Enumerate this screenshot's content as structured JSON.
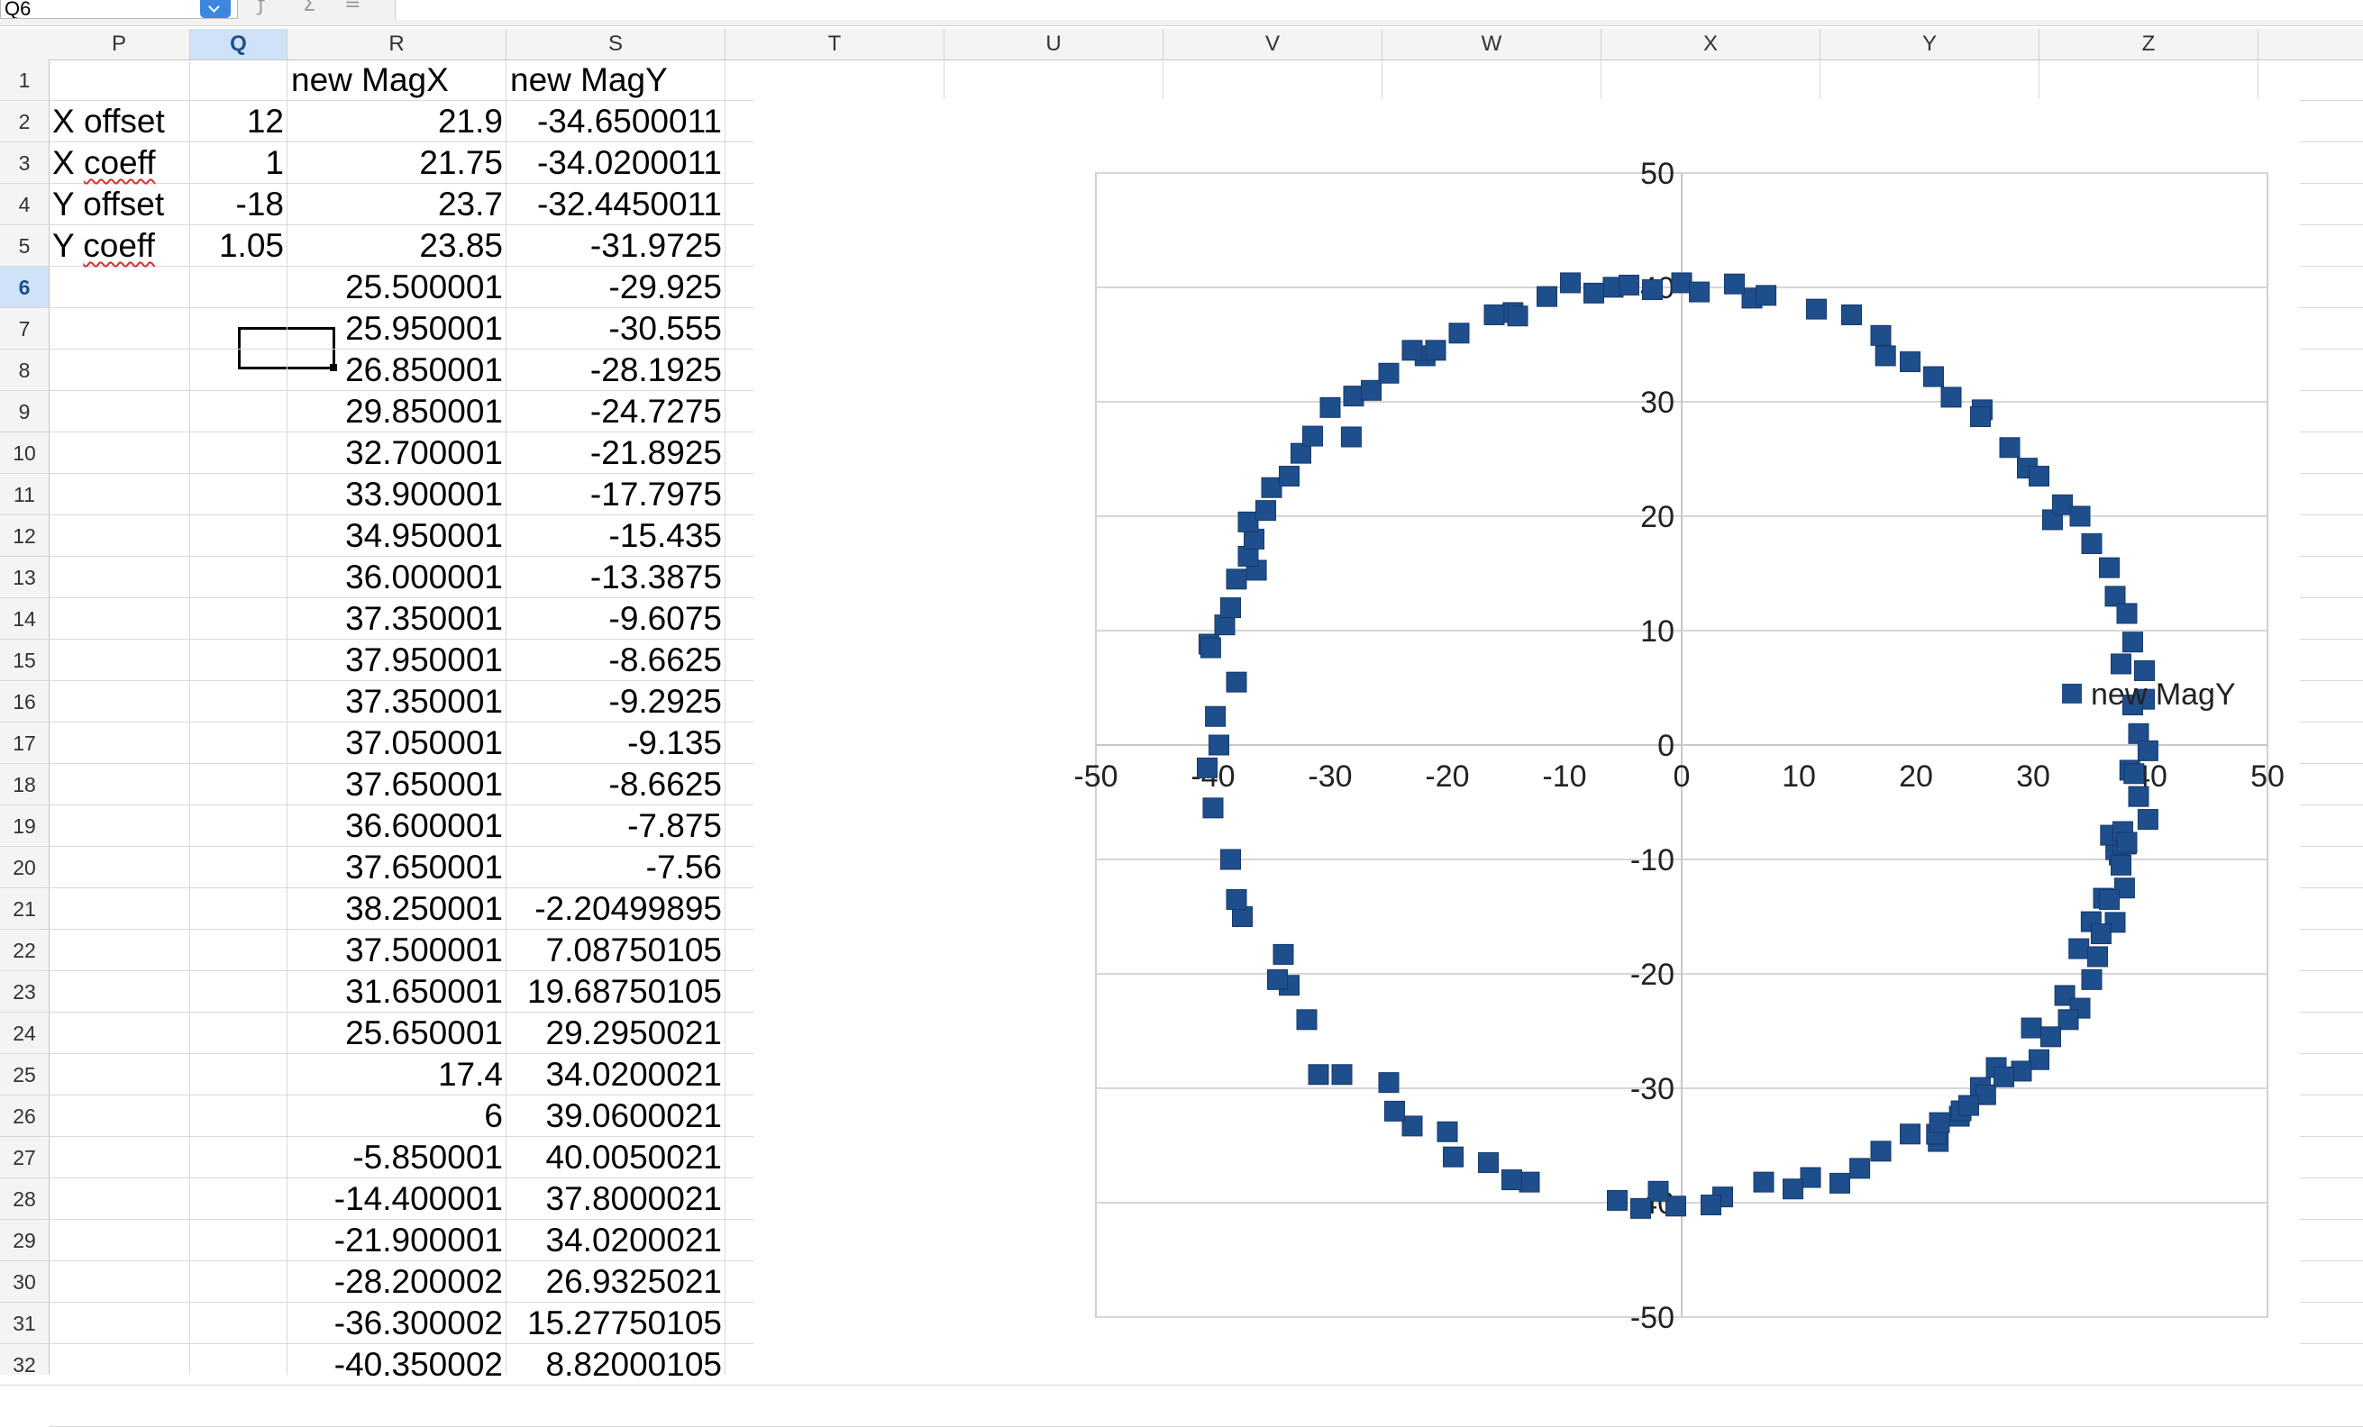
{
  "toolbar": {
    "name_box": "Q6",
    "function_wizard_icon": "fx-icon",
    "sum_icon": "sigma-icon",
    "equals_icon": "equals-icon"
  },
  "sheet": {
    "columns": [
      {
        "letter": "P",
        "selected": false
      },
      {
        "letter": "Q",
        "selected": true
      },
      {
        "letter": "R",
        "selected": false
      },
      {
        "letter": "S",
        "selected": false
      },
      {
        "letter": "T",
        "selected": false
      },
      {
        "letter": "U",
        "selected": false
      },
      {
        "letter": "V",
        "selected": false
      },
      {
        "letter": "W",
        "selected": false
      },
      {
        "letter": "X",
        "selected": false
      },
      {
        "letter": "Y",
        "selected": false
      },
      {
        "letter": "Z",
        "selected": false
      }
    ],
    "selected_row": 6,
    "rows": [
      {
        "n": "1",
        "P": "",
        "Q": "",
        "R": "new MagX",
        "S": "new MagY"
      },
      {
        "n": "2",
        "P": "X offset",
        "Q": "12",
        "R": "21.9",
        "S": "-34.6500011"
      },
      {
        "n": "3",
        "P": "X coeff",
        "Q": "1",
        "R": "21.75",
        "S": "-34.0200011"
      },
      {
        "n": "4",
        "P": "Y offset",
        "Q": "-18",
        "R": "23.7",
        "S": "-32.4450011"
      },
      {
        "n": "5",
        "P": "Y coeff",
        "Q": "1.05",
        "R": "23.85",
        "S": "-31.9725"
      },
      {
        "n": "6",
        "P": "",
        "Q": "",
        "R": "25.500001",
        "S": "-29.925"
      },
      {
        "n": "7",
        "P": "",
        "Q": "",
        "R": "25.950001",
        "S": "-30.555"
      },
      {
        "n": "8",
        "P": "",
        "Q": "",
        "R": "26.850001",
        "S": "-28.1925"
      },
      {
        "n": "9",
        "P": "",
        "Q": "",
        "R": "29.850001",
        "S": "-24.7275"
      },
      {
        "n": "10",
        "P": "",
        "Q": "",
        "R": "32.700001",
        "S": "-21.8925"
      },
      {
        "n": "11",
        "P": "",
        "Q": "",
        "R": "33.900001",
        "S": "-17.7975"
      },
      {
        "n": "12",
        "P": "",
        "Q": "",
        "R": "34.950001",
        "S": "-15.435"
      },
      {
        "n": "13",
        "P": "",
        "Q": "",
        "R": "36.000001",
        "S": "-13.3875"
      },
      {
        "n": "14",
        "P": "",
        "Q": "",
        "R": "37.350001",
        "S": "-9.6075"
      },
      {
        "n": "15",
        "P": "",
        "Q": "",
        "R": "37.950001",
        "S": "-8.6625"
      },
      {
        "n": "16",
        "P": "",
        "Q": "",
        "R": "37.350001",
        "S": "-9.2925"
      },
      {
        "n": "17",
        "P": "",
        "Q": "",
        "R": "37.050001",
        "S": "-9.135"
      },
      {
        "n": "18",
        "P": "",
        "Q": "",
        "R": "37.650001",
        "S": "-8.6625"
      },
      {
        "n": "19",
        "P": "",
        "Q": "",
        "R": "36.600001",
        "S": "-7.875"
      },
      {
        "n": "20",
        "P": "",
        "Q": "",
        "R": "37.650001",
        "S": "-7.56"
      },
      {
        "n": "21",
        "P": "",
        "Q": "",
        "R": "38.250001",
        "S": "-2.20499895"
      },
      {
        "n": "22",
        "P": "",
        "Q": "",
        "R": "37.500001",
        "S": "7.08750105"
      },
      {
        "n": "23",
        "P": "",
        "Q": "",
        "R": "31.650001",
        "S": "19.68750105"
      },
      {
        "n": "24",
        "P": "",
        "Q": "",
        "R": "25.650001",
        "S": "29.2950021"
      },
      {
        "n": "25",
        "P": "",
        "Q": "",
        "R": "17.4",
        "S": "34.0200021"
      },
      {
        "n": "26",
        "P": "",
        "Q": "",
        "R": "6",
        "S": "39.0600021"
      },
      {
        "n": "27",
        "P": "",
        "Q": "",
        "R": "-5.850001",
        "S": "40.0050021"
      },
      {
        "n": "28",
        "P": "",
        "Q": "",
        "R": "-14.400001",
        "S": "37.8000021"
      },
      {
        "n": "29",
        "P": "",
        "Q": "",
        "R": "-21.900001",
        "S": "34.0200021"
      },
      {
        "n": "30",
        "P": "",
        "Q": "",
        "R": "-28.200002",
        "S": "26.9325021"
      },
      {
        "n": "31",
        "P": "",
        "Q": "",
        "R": "-36.300002",
        "S": "15.27750105"
      },
      {
        "n": "32",
        "P": "",
        "Q": "",
        "R": "-40.350002",
        "S": "8.82000105"
      }
    ]
  },
  "chart_data": {
    "type": "scatter",
    "marker_color": "#1f4e8c",
    "xlim": [
      -50,
      50
    ],
    "ylim": [
      -50,
      50
    ],
    "x_ticks": [
      "-50",
      "-40",
      "-30",
      "-20",
      "-10",
      "0",
      "10",
      "20",
      "30",
      "40",
      "50"
    ],
    "y_ticks": [
      "-50",
      "-40",
      "-30",
      "-20",
      "-10",
      "0",
      "10",
      "20",
      "30",
      "40",
      "50"
    ],
    "grid": true,
    "legend_position": "right",
    "series": [
      {
        "name": "new MagY",
        "points": [
          [
            21.9,
            -34.65
          ],
          [
            21.75,
            -34.02
          ],
          [
            23.7,
            -32.445
          ],
          [
            23.85,
            -31.97
          ],
          [
            25.5,
            -29.93
          ],
          [
            25.95,
            -30.56
          ],
          [
            26.85,
            -28.19
          ],
          [
            29.85,
            -24.73
          ],
          [
            32.7,
            -21.89
          ],
          [
            33.9,
            -17.8
          ],
          [
            34.95,
            -15.44
          ],
          [
            36.0,
            -13.39
          ],
          [
            37.35,
            -9.61
          ],
          [
            37.95,
            -8.66
          ],
          [
            37.35,
            -9.29
          ],
          [
            37.05,
            -9.14
          ],
          [
            37.65,
            -8.66
          ],
          [
            36.6,
            -7.88
          ],
          [
            37.65,
            -7.56
          ],
          [
            38.25,
            -2.2
          ],
          [
            37.5,
            7.09
          ],
          [
            31.65,
            19.69
          ],
          [
            25.65,
            29.3
          ],
          [
            17.4,
            34.02
          ],
          [
            6.0,
            39.06
          ],
          [
            -5.85,
            40.01
          ],
          [
            -14.4,
            37.8
          ],
          [
            -21.9,
            34.02
          ],
          [
            -28.2,
            26.93
          ],
          [
            -36.3,
            15.28
          ],
          [
            -40.35,
            8.82
          ],
          [
            -4.5,
            40.2
          ],
          [
            -2.5,
            39.8
          ],
          [
            0.0,
            40.4
          ],
          [
            1.5,
            39.6
          ],
          [
            4.5,
            40.3
          ],
          [
            7.2,
            39.3
          ],
          [
            11.5,
            38.1
          ],
          [
            14.5,
            37.6
          ],
          [
            17.0,
            35.8
          ],
          [
            19.5,
            33.5
          ],
          [
            21.5,
            32.2
          ],
          [
            23.0,
            30.4
          ],
          [
            25.5,
            28.7
          ],
          [
            28.0,
            26.0
          ],
          [
            29.5,
            24.2
          ],
          [
            30.5,
            23.5
          ],
          [
            32.5,
            21.0
          ],
          [
            34.0,
            20.0
          ],
          [
            35.0,
            17.6
          ],
          [
            36.5,
            15.5
          ],
          [
            37.0,
            13.0
          ],
          [
            38.0,
            11.5
          ],
          [
            38.5,
            9.0
          ],
          [
            39.5,
            6.5
          ],
          [
            39.5,
            4.0
          ],
          [
            38.5,
            3.5
          ],
          [
            39.0,
            1.0
          ],
          [
            39.8,
            -0.5
          ],
          [
            38.6,
            -2.5
          ],
          [
            39.0,
            -4.5
          ],
          [
            39.8,
            -6.5
          ],
          [
            38.0,
            -8.5
          ],
          [
            37.5,
            -10.5
          ],
          [
            37.8,
            -12.5
          ],
          [
            36.5,
            -13.5
          ],
          [
            37.0,
            -15.5
          ],
          [
            35.8,
            -16.5
          ],
          [
            35.5,
            -18.5
          ],
          [
            35.0,
            -20.5
          ],
          [
            34.0,
            -23.0
          ],
          [
            33.0,
            -24.0
          ],
          [
            31.5,
            -25.5
          ],
          [
            30.5,
            -27.5
          ],
          [
            29.0,
            -28.5
          ],
          [
            27.5,
            -29.0
          ],
          [
            24.5,
            -31.5
          ],
          [
            22.0,
            -33.0
          ],
          [
            19.5,
            -34.0
          ],
          [
            17.0,
            -35.5
          ],
          [
            15.2,
            -37.0
          ],
          [
            13.5,
            -38.3
          ],
          [
            11.0,
            -37.8
          ],
          [
            9.5,
            -38.8
          ],
          [
            7.0,
            -38.2
          ],
          [
            3.5,
            -39.5
          ],
          [
            2.5,
            -40.2
          ],
          [
            -0.5,
            -40.3
          ],
          [
            -2.0,
            -39.0
          ],
          [
            -3.5,
            -40.5
          ],
          [
            -5.5,
            -39.8
          ],
          [
            -13.0,
            -38.2
          ],
          [
            -14.5,
            -38.0
          ],
          [
            -16.5,
            -36.5
          ],
          [
            -19.5,
            -36.0
          ],
          [
            -20.0,
            -33.8
          ],
          [
            -23.0,
            -33.3
          ],
          [
            -24.5,
            -32.0
          ],
          [
            -25.0,
            -29.5
          ],
          [
            -29.0,
            -28.8
          ],
          [
            -31.0,
            -28.8
          ],
          [
            -32.0,
            -24.0
          ],
          [
            -33.5,
            -21.0
          ],
          [
            -34.5,
            -20.5
          ],
          [
            -34.0,
            -18.3
          ],
          [
            -37.5,
            -15.0
          ],
          [
            -38.0,
            -13.5
          ],
          [
            -38.5,
            -10.0
          ],
          [
            -40.0,
            -5.5
          ],
          [
            -40.5,
            -2.0
          ],
          [
            -39.5,
            0.0
          ],
          [
            -39.8,
            2.5
          ],
          [
            -38.0,
            5.5
          ],
          [
            -40.2,
            8.5
          ],
          [
            -39.0,
            10.5
          ],
          [
            -38.5,
            12.0
          ],
          [
            -38.0,
            14.5
          ],
          [
            -37.0,
            16.5
          ],
          [
            -36.5,
            18.0
          ],
          [
            -37.0,
            19.5
          ],
          [
            -35.5,
            20.5
          ],
          [
            -35.0,
            22.5
          ],
          [
            -33.5,
            23.5
          ],
          [
            -32.5,
            25.5
          ],
          [
            -31.5,
            27.0
          ],
          [
            -30.0,
            29.5
          ],
          [
            -28.0,
            30.5
          ],
          [
            -26.5,
            31.0
          ],
          [
            -25.0,
            32.5
          ],
          [
            -23.0,
            34.5
          ],
          [
            -21.0,
            34.5
          ],
          [
            -19.0,
            36.0
          ],
          [
            -16.0,
            37.6
          ],
          [
            -14.0,
            37.5
          ],
          [
            -11.5,
            39.2
          ],
          [
            -9.5,
            40.4
          ],
          [
            -7.5,
            39.5
          ]
        ]
      }
    ]
  }
}
